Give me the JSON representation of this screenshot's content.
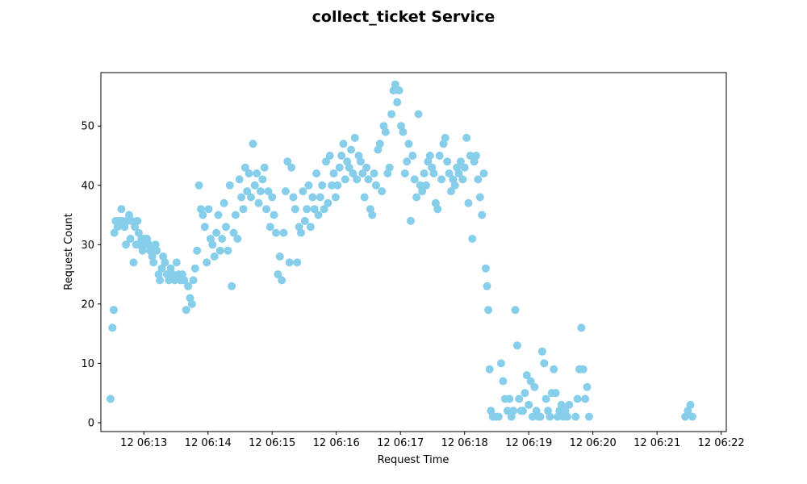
{
  "chart_data": {
    "type": "scatter",
    "title": "collect_ticket Service",
    "xlabel": "Request Time",
    "ylabel": "Request Count",
    "x_unit": "minutes past 06:00 on day 12",
    "xlim": [
      12.33,
      22.08
    ],
    "ylim": [
      -1.5,
      59
    ],
    "xticks": [
      {
        "value": 13,
        "label": "12 06:13"
      },
      {
        "value": 14,
        "label": "12 06:14"
      },
      {
        "value": 15,
        "label": "12 06:15"
      },
      {
        "value": 16,
        "label": "12 06:16"
      },
      {
        "value": 17,
        "label": "12 06:17"
      },
      {
        "value": 18,
        "label": "12 06:18"
      },
      {
        "value": 19,
        "label": "12 06:19"
      },
      {
        "value": 20,
        "label": "12 06:20"
      },
      {
        "value": 21,
        "label": "12 06:21"
      },
      {
        "value": 22,
        "label": "12 06:22"
      }
    ],
    "yticks": [
      0,
      10,
      20,
      30,
      40,
      50
    ],
    "grid": false,
    "marker_color": "#87CEEB",
    "series": [
      {
        "name": "",
        "points": [
          [
            12.48,
            4
          ],
          [
            12.51,
            16
          ],
          [
            12.53,
            19
          ],
          [
            12.54,
            32
          ],
          [
            12.56,
            34
          ],
          [
            12.59,
            33
          ],
          [
            12.62,
            34
          ],
          [
            12.65,
            36
          ],
          [
            12.67,
            34
          ],
          [
            12.7,
            33
          ],
          [
            12.72,
            30
          ],
          [
            12.74,
            34
          ],
          [
            12.77,
            35
          ],
          [
            12.79,
            31
          ],
          [
            12.81,
            34
          ],
          [
            12.84,
            27
          ],
          [
            12.86,
            33
          ],
          [
            12.88,
            30
          ],
          [
            12.9,
            34
          ],
          [
            12.92,
            32
          ],
          [
            12.94,
            30
          ],
          [
            12.96,
            31
          ],
          [
            12.98,
            29
          ],
          [
            13.0,
            31
          ],
          [
            13.03,
            30
          ],
          [
            13.05,
            31
          ],
          [
            13.08,
            30
          ],
          [
            13.1,
            29
          ],
          [
            13.13,
            28
          ],
          [
            13.15,
            27
          ],
          [
            13.18,
            30
          ],
          [
            13.2,
            29
          ],
          [
            13.23,
            25
          ],
          [
            13.25,
            24
          ],
          [
            13.28,
            26
          ],
          [
            13.3,
            28
          ],
          [
            13.33,
            27
          ],
          [
            13.36,
            25
          ],
          [
            13.39,
            24
          ],
          [
            13.42,
            26
          ],
          [
            13.45,
            25
          ],
          [
            13.48,
            24
          ],
          [
            13.51,
            27
          ],
          [
            13.54,
            25
          ],
          [
            13.57,
            24
          ],
          [
            13.6,
            25
          ],
          [
            13.63,
            24
          ],
          [
            13.66,
            19
          ],
          [
            13.69,
            23
          ],
          [
            13.72,
            21
          ],
          [
            13.75,
            20
          ],
          [
            13.77,
            24
          ],
          [
            13.8,
            26
          ],
          [
            13.83,
            29
          ],
          [
            13.86,
            40
          ],
          [
            13.89,
            36
          ],
          [
            13.92,
            35
          ],
          [
            13.95,
            33
          ],
          [
            13.98,
            27
          ],
          [
            14.01,
            36
          ],
          [
            14.04,
            31
          ],
          [
            14.07,
            30
          ],
          [
            14.1,
            28
          ],
          [
            14.13,
            32
          ],
          [
            14.16,
            35
          ],
          [
            14.19,
            29
          ],
          [
            14.22,
            31
          ],
          [
            14.25,
            37
          ],
          [
            14.28,
            33
          ],
          [
            14.31,
            29
          ],
          [
            14.34,
            40
          ],
          [
            14.37,
            23
          ],
          [
            14.4,
            32
          ],
          [
            14.43,
            35
          ],
          [
            14.46,
            31
          ],
          [
            14.49,
            41
          ],
          [
            14.52,
            38
          ],
          [
            14.55,
            36
          ],
          [
            14.58,
            43
          ],
          [
            14.61,
            39
          ],
          [
            14.64,
            42
          ],
          [
            14.67,
            38
          ],
          [
            14.7,
            47
          ],
          [
            14.73,
            40
          ],
          [
            14.76,
            42
          ],
          [
            14.79,
            37
          ],
          [
            14.82,
            39
          ],
          [
            14.85,
            41
          ],
          [
            14.88,
            43
          ],
          [
            14.91,
            36
          ],
          [
            14.94,
            39
          ],
          [
            14.97,
            33
          ],
          [
            15.0,
            38
          ],
          [
            15.03,
            35
          ],
          [
            15.06,
            32
          ],
          [
            15.09,
            25
          ],
          [
            15.12,
            28
          ],
          [
            15.15,
            24
          ],
          [
            15.18,
            32
          ],
          [
            15.21,
            39
          ],
          [
            15.24,
            44
          ],
          [
            15.27,
            27
          ],
          [
            15.3,
            43
          ],
          [
            15.33,
            38
          ],
          [
            15.36,
            36
          ],
          [
            15.39,
            27
          ],
          [
            15.42,
            33
          ],
          [
            15.45,
            32
          ],
          [
            15.48,
            39
          ],
          [
            15.51,
            34
          ],
          [
            15.54,
            36
          ],
          [
            15.57,
            40
          ],
          [
            15.6,
            33
          ],
          [
            15.63,
            38
          ],
          [
            15.66,
            36
          ],
          [
            15.69,
            42
          ],
          [
            15.72,
            35
          ],
          [
            15.75,
            38
          ],
          [
            15.78,
            40
          ],
          [
            15.81,
            36
          ],
          [
            15.84,
            44
          ],
          [
            15.87,
            37
          ],
          [
            15.9,
            45
          ],
          [
            15.93,
            40
          ],
          [
            15.96,
            42
          ],
          [
            15.99,
            38
          ],
          [
            16.02,
            40
          ],
          [
            16.05,
            43
          ],
          [
            16.08,
            45
          ],
          [
            16.11,
            47
          ],
          [
            16.14,
            41
          ],
          [
            16.17,
            44
          ],
          [
            16.2,
            43
          ],
          [
            16.23,
            46
          ],
          [
            16.26,
            42
          ],
          [
            16.29,
            48
          ],
          [
            16.32,
            41
          ],
          [
            16.35,
            45
          ],
          [
            16.38,
            44
          ],
          [
            16.41,
            42
          ],
          [
            16.44,
            38
          ],
          [
            16.47,
            43
          ],
          [
            16.5,
            41
          ],
          [
            16.53,
            36
          ],
          [
            16.56,
            35
          ],
          [
            16.59,
            42
          ],
          [
            16.62,
            40
          ],
          [
            16.65,
            46
          ],
          [
            16.68,
            47
          ],
          [
            16.71,
            39
          ],
          [
            16.74,
            50
          ],
          [
            16.77,
            49
          ],
          [
            16.8,
            42
          ],
          [
            16.83,
            43
          ],
          [
            16.86,
            52
          ],
          [
            16.89,
            56
          ],
          [
            16.92,
            57
          ],
          [
            16.95,
            54
          ],
          [
            16.98,
            56
          ],
          [
            17.01,
            50
          ],
          [
            17.04,
            49
          ],
          [
            17.07,
            42
          ],
          [
            17.1,
            44
          ],
          [
            17.13,
            47
          ],
          [
            17.16,
            34
          ],
          [
            17.19,
            45
          ],
          [
            17.22,
            41
          ],
          [
            17.25,
            38
          ],
          [
            17.28,
            52
          ],
          [
            17.31,
            40
          ],
          [
            17.34,
            39
          ],
          [
            17.37,
            42
          ],
          [
            17.4,
            40
          ],
          [
            17.43,
            44
          ],
          [
            17.46,
            45
          ],
          [
            17.49,
            43
          ],
          [
            17.52,
            42
          ],
          [
            17.55,
            37
          ],
          [
            17.58,
            36
          ],
          [
            17.61,
            45
          ],
          [
            17.64,
            41
          ],
          [
            17.67,
            47
          ],
          [
            17.7,
            48
          ],
          [
            17.73,
            44
          ],
          [
            17.76,
            42
          ],
          [
            17.79,
            39
          ],
          [
            17.82,
            41
          ],
          [
            17.85,
            40
          ],
          [
            17.88,
            43
          ],
          [
            17.91,
            42
          ],
          [
            17.94,
            44
          ],
          [
            17.97,
            41
          ],
          [
            18.0,
            43
          ],
          [
            18.03,
            48
          ],
          [
            18.06,
            37
          ],
          [
            18.09,
            45
          ],
          [
            18.12,
            31
          ],
          [
            18.15,
            44
          ],
          [
            18.18,
            45
          ],
          [
            18.21,
            41
          ],
          [
            18.24,
            38
          ],
          [
            18.27,
            35
          ],
          [
            18.3,
            42
          ],
          [
            18.33,
            26
          ],
          [
            18.35,
            23
          ],
          [
            18.37,
            19
          ],
          [
            18.39,
            9
          ],
          [
            18.41,
            2
          ],
          [
            18.44,
            1
          ],
          [
            18.47,
            1
          ],
          [
            18.5,
            1
          ],
          [
            18.53,
            1
          ],
          [
            18.57,
            10
          ],
          [
            18.6,
            7
          ],
          [
            18.63,
            4
          ],
          [
            18.67,
            2
          ],
          [
            18.7,
            4
          ],
          [
            18.73,
            1
          ],
          [
            18.76,
            2
          ],
          [
            18.79,
            19
          ],
          [
            18.82,
            13
          ],
          [
            18.85,
            4
          ],
          [
            18.88,
            2
          ],
          [
            18.91,
            2
          ],
          [
            18.94,
            5
          ],
          [
            18.97,
            8
          ],
          [
            19.0,
            3
          ],
          [
            19.03,
            7
          ],
          [
            19.06,
            1
          ],
          [
            19.09,
            6
          ],
          [
            19.12,
            2
          ],
          [
            19.15,
            1
          ],
          [
            19.18,
            1
          ],
          [
            19.21,
            12
          ],
          [
            19.24,
            10
          ],
          [
            19.27,
            4
          ],
          [
            19.3,
            2
          ],
          [
            19.33,
            1
          ],
          [
            19.36,
            5
          ],
          [
            19.39,
            9
          ],
          [
            19.42,
            5
          ],
          [
            19.45,
            1
          ],
          [
            19.48,
            2
          ],
          [
            19.51,
            3
          ],
          [
            19.54,
            1
          ],
          [
            19.57,
            2
          ],
          [
            19.6,
            1
          ],
          [
            19.63,
            3
          ],
          [
            19.73,
            1
          ],
          [
            19.76,
            4
          ],
          [
            19.79,
            9
          ],
          [
            19.82,
            16
          ],
          [
            19.85,
            9
          ],
          [
            19.88,
            4
          ],
          [
            19.91,
            6
          ],
          [
            19.94,
            1
          ],
          [
            21.44,
            1
          ],
          [
            21.48,
            2
          ],
          [
            21.52,
            3
          ],
          [
            21.55,
            1
          ]
        ]
      }
    ]
  }
}
